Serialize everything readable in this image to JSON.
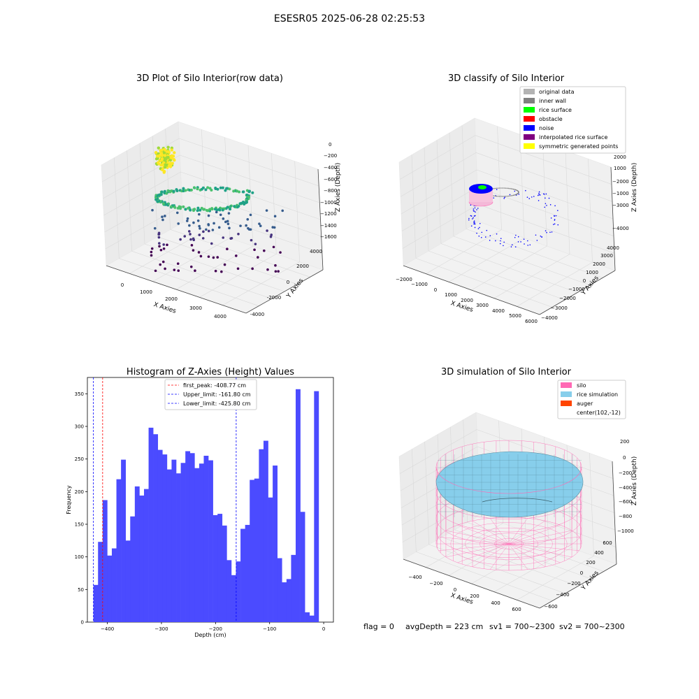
{
  "figure": {
    "suptitle": "ESESR05 2025-06-28 02:25:53",
    "footer": {
      "flag": "flag = 0",
      "avg_depth": "avgDepth = 223 cm",
      "sv1": "sv1 = 700~2300",
      "sv2": "sv2 = 700~2300"
    }
  },
  "colors": {
    "hist_bar": "#4b4bff",
    "first_peak_line": "#ff0000",
    "limit_lines": "#0000ff",
    "silo": "#ff69b4",
    "rice_simulation": "#87ceeb",
    "auger": "#ff4500",
    "original_data": "#b3b3b3",
    "inner_wall": "#808080",
    "rice_surface": "#00ff00",
    "obstacle": "#ff0000",
    "noise": "#0000ff",
    "interpolated_rice_surface": "#800080",
    "symmetric_generated_points": "#ffff00"
  },
  "chart_data": [
    {
      "type": "scatter",
      "title": "3D Plot of Silo Interior(row data)",
      "xlabel": "X Axies",
      "ylabel": "Y Axies",
      "zlabel": "Z Axies (Depth)",
      "x_ticks": [
        "0",
        "1000",
        "2000",
        "3000",
        "4000"
      ],
      "y_ticks": [
        "-4000",
        "-2000",
        "0",
        "2000",
        "4000"
      ],
      "z_ticks": [
        "0",
        "−200",
        "−400",
        "−600",
        "−800",
        "−1000",
        "−1200",
        "−1400",
        "−1600"
      ],
      "colormap": "viridis",
      "grid": true
    },
    {
      "type": "scatter",
      "title": "3D classify of Silo Interior",
      "xlabel": "X Axies",
      "ylabel": "Y Axies",
      "zlabel": "Z Axies (Depth)",
      "x_ticks": [
        "−2000",
        "−1000",
        "0",
        "1000",
        "2000",
        "3000",
        "4000",
        "5000",
        "6000"
      ],
      "y_ticks": [
        "−4000",
        "−3000",
        "−2000",
        "−1000",
        "0",
        "1000",
        "2000",
        "3000",
        "4000"
      ],
      "z_ticks": [
        "−4000",
        "−3000",
        "−2000",
        "−1000",
        "0",
        "1000",
        "2000",
        "3000"
      ],
      "legend_position": "top-right",
      "legend": [
        {
          "label": "original data",
          "color": "#b3b3b3"
        },
        {
          "label": "inner wall",
          "color": "#808080"
        },
        {
          "label": "rice surface",
          "color": "#00ff00"
        },
        {
          "label": "obstacle",
          "color": "#ff0000"
        },
        {
          "label": "noise",
          "color": "#0000ff"
        },
        {
          "label": "interpolated rice surface",
          "color": "#800080"
        },
        {
          "label": "symmetric generated points",
          "color": "#ffff00"
        }
      ],
      "grid": true
    },
    {
      "type": "bar",
      "title": "Histogram of Z-Axies (Height) Values",
      "xlabel": "Depth (cm)",
      "ylabel": "Frequency",
      "xlim": [
        -437,
        18
      ],
      "ylim": [
        0,
        375
      ],
      "x_ticks": [
        -400,
        -300,
        -200,
        -100,
        0
      ],
      "x_tick_labels": [
        "−400",
        "−300",
        "−200",
        "−100",
        "0"
      ],
      "y_ticks": [
        0,
        50,
        100,
        150,
        200,
        250,
        300,
        350
      ],
      "bin_start": -425.8,
      "bin_width": 8.5,
      "values": [
        57,
        123,
        187,
        102,
        113,
        219,
        249,
        125,
        162,
        208,
        194,
        204,
        298,
        288,
        264,
        257,
        234,
        249,
        228,
        244,
        262,
        259,
        236,
        243,
        255,
        248,
        164,
        166,
        148,
        95,
        72,
        93,
        143,
        149,
        218,
        220,
        265,
        278,
        191,
        240,
        98,
        61,
        66,
        103,
        357,
        169,
        15,
        10,
        354
      ],
      "vlines": [
        {
          "label": "first_peak: -408.77 cm",
          "x": -408.77,
          "color": "#ff0000"
        },
        {
          "label": "Upper_limit: -161.80 cm",
          "x": -161.8,
          "color": "#0000ff"
        },
        {
          "label": "Lower_limit: -425.80 cm",
          "x": -425.8,
          "color": "#0000ff"
        }
      ],
      "legend_position": "top-center",
      "grid": false
    },
    {
      "type": "scatter",
      "title": "3D simulation of Silo Interior",
      "xlabel": "X Axies",
      "ylabel": "Y Axies",
      "zlabel": "Z Axies (Depth)",
      "x_ticks": [
        "−400",
        "−200",
        "0",
        "200",
        "400",
        "600"
      ],
      "y_ticks": [
        "−600",
        "−400",
        "−200",
        "0",
        "200",
        "400",
        "600"
      ],
      "z_ticks": [
        "−1000",
        "−800",
        "−600",
        "−400",
        "−200",
        "0",
        "200"
      ],
      "legend_position": "top-right",
      "legend": [
        {
          "label": "silo",
          "color": "#ff69b4"
        },
        {
          "label": "rice simulation",
          "color": "#87ceeb"
        },
        {
          "label": "auger",
          "color": "#ff4500"
        },
        {
          "label": "center(102,-12)",
          "color": ""
        }
      ],
      "grid": true
    }
  ]
}
